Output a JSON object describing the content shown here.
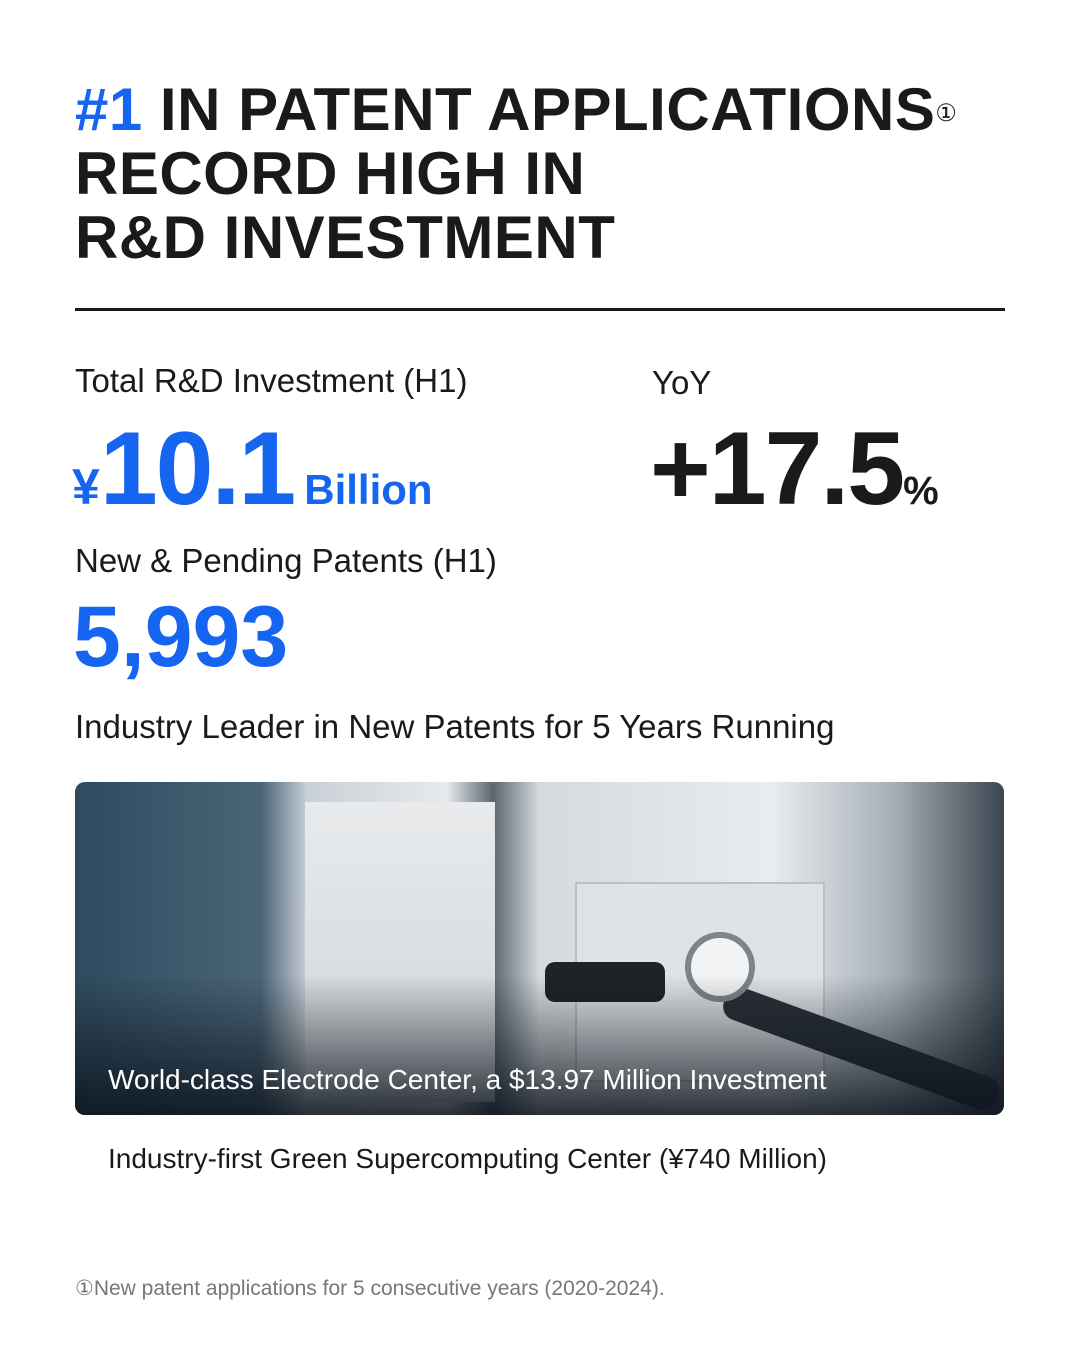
{
  "header": {
    "rank": "#1",
    "line1": "IN PATENT APPLICATIONS",
    "footnote_mark": "①",
    "line2": "RECORD HIGH IN",
    "line3": "R&D INVESTMENT"
  },
  "investment": {
    "label": "Total R&D Investment (H1)",
    "currency": "¥",
    "value": "10.1",
    "unit": "Billion"
  },
  "yoy": {
    "label": "YoY",
    "value": "+17.5",
    "unit": "%"
  },
  "patents": {
    "label": "New & Pending Patents (H1)",
    "value": "5,993"
  },
  "leader": "Industry Leader in New Patents for 5 Years Running",
  "photo": {
    "caption": "World-class Electrode Center, a $13.97 Million Investment"
  },
  "supercomputing": "Industry-first Green Supercomputing Center (¥740 Million)",
  "footnote": "①New patent applications for 5 consecutive years (2020-2024).",
  "colors": {
    "accent": "#1565f0",
    "text": "#1a1a1a"
  }
}
